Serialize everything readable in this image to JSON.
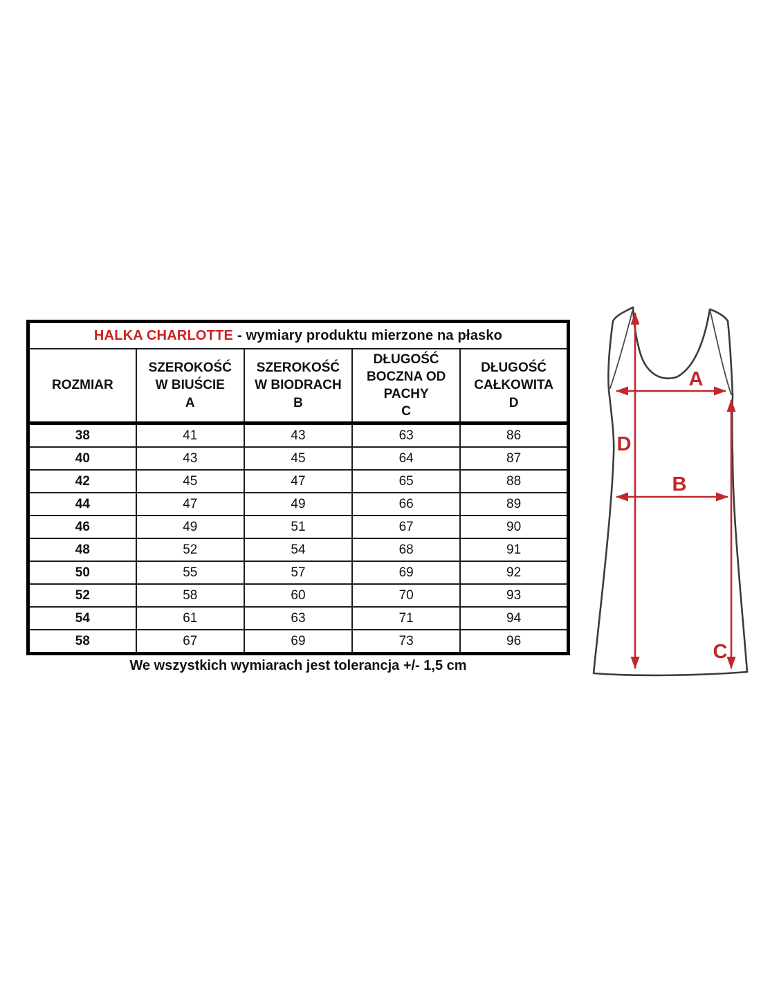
{
  "size_chart": {
    "title": {
      "brand": "HALKA CHARLOTTE",
      "suffix": "- wymiary produktu mierzone na płasko"
    },
    "columns": [
      {
        "lines": [
          "ROZMIAR"
        ]
      },
      {
        "lines": [
          "SZEROKOŚĆ",
          "W BIUŚCIE",
          "A"
        ]
      },
      {
        "lines": [
          "SZEROKOŚĆ",
          "W BIODRACH",
          "B"
        ]
      },
      {
        "lines": [
          "DŁUGOŚĆ",
          "BOCZNA OD",
          "PACHY",
          "C"
        ]
      },
      {
        "lines": [
          "DŁUGOŚĆ",
          "CAŁKOWITA",
          "D"
        ]
      }
    ],
    "rows": [
      [
        "38",
        "41",
        "43",
        "63",
        "86"
      ],
      [
        "40",
        "43",
        "45",
        "64",
        "87"
      ],
      [
        "42",
        "45",
        "47",
        "65",
        "88"
      ],
      [
        "44",
        "47",
        "49",
        "66",
        "89"
      ],
      [
        "46",
        "49",
        "51",
        "67",
        "90"
      ],
      [
        "48",
        "52",
        "54",
        "68",
        "91"
      ],
      [
        "50",
        "55",
        "57",
        "69",
        "92"
      ],
      [
        "52",
        "58",
        "60",
        "70",
        "93"
      ],
      [
        "54",
        "61",
        "63",
        "71",
        "94"
      ],
      [
        "58",
        "67",
        "69",
        "73",
        "96"
      ]
    ],
    "footer_note": "We wszystkich wymiarach jest tolerancja +/- 1,5 cm"
  },
  "diagram": {
    "labels": {
      "bust_width": "A",
      "hip_width": "B",
      "side_length": "C",
      "total_length": "D"
    },
    "arrow_color": "#c1272d",
    "outline_color": "#3c3c3c"
  },
  "colors": {
    "brand_red": "#cc2222",
    "table_border": "#000000",
    "text": "#111111"
  }
}
